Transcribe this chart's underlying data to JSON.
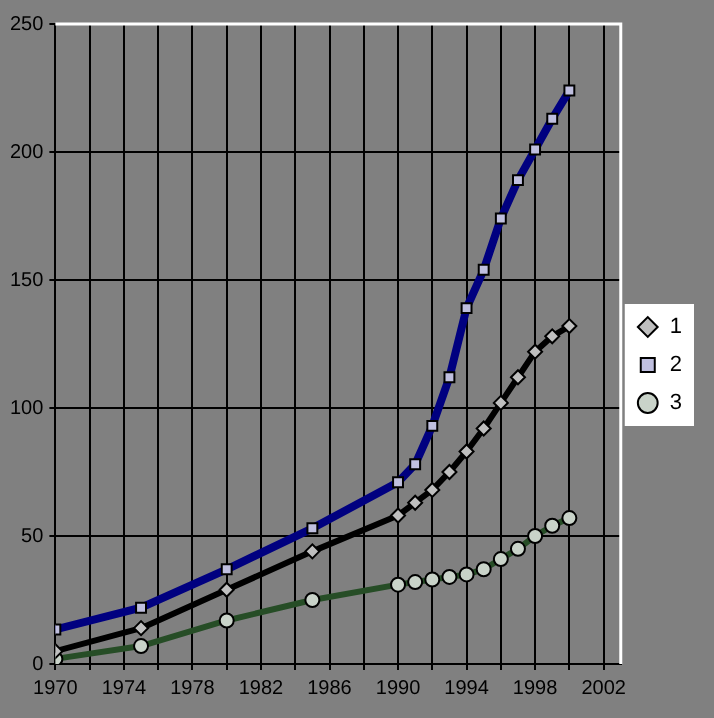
{
  "chart_data": {
    "type": "line",
    "x": [
      1970,
      1975,
      1980,
      1985,
      1990,
      1991,
      1992,
      1993,
      1994,
      1995,
      1996,
      1997,
      1998,
      1999,
      2000
    ],
    "series": [
      {
        "name": "1",
        "color": "#000000",
        "marker": "diamond",
        "values": [
          5,
          14,
          29,
          44,
          58,
          63,
          68,
          75,
          83,
          92,
          102,
          112,
          122,
          128,
          132
        ]
      },
      {
        "name": "2",
        "color": "#000080",
        "marker": "square",
        "values": [
          13.5,
          22,
          37,
          53,
          71,
          78,
          93,
          112,
          139,
          154,
          174,
          189,
          201,
          213,
          224
        ]
      },
      {
        "name": "3",
        "color": "#264d26",
        "marker": "circle",
        "values": [
          2,
          7,
          17,
          25,
          31,
          32,
          33,
          34,
          35,
          37,
          41,
          45,
          50,
          54,
          57
        ]
      }
    ],
    "xlim": [
      1970,
      2003
    ],
    "xticks": [
      1970,
      {
        "value": 1972,
        "label": null
      },
      1974,
      {
        "value": 1976,
        "label": null
      },
      1978,
      {
        "value": 1980,
        "label": null
      },
      1982,
      {
        "value": 1984,
        "label": null
      },
      1986,
      {
        "value": 1988,
        "label": null
      },
      1990,
      {
        "value": 1992,
        "label": null
      },
      1994,
      {
        "value": 1996,
        "label": null
      },
      1998,
      {
        "value": 2000,
        "label": null
      },
      2002
    ],
    "ylim": [
      0,
      250
    ],
    "yticks": [
      0,
      50,
      100,
      150,
      200,
      250
    ],
    "grid": true,
    "legend": "right"
  }
}
